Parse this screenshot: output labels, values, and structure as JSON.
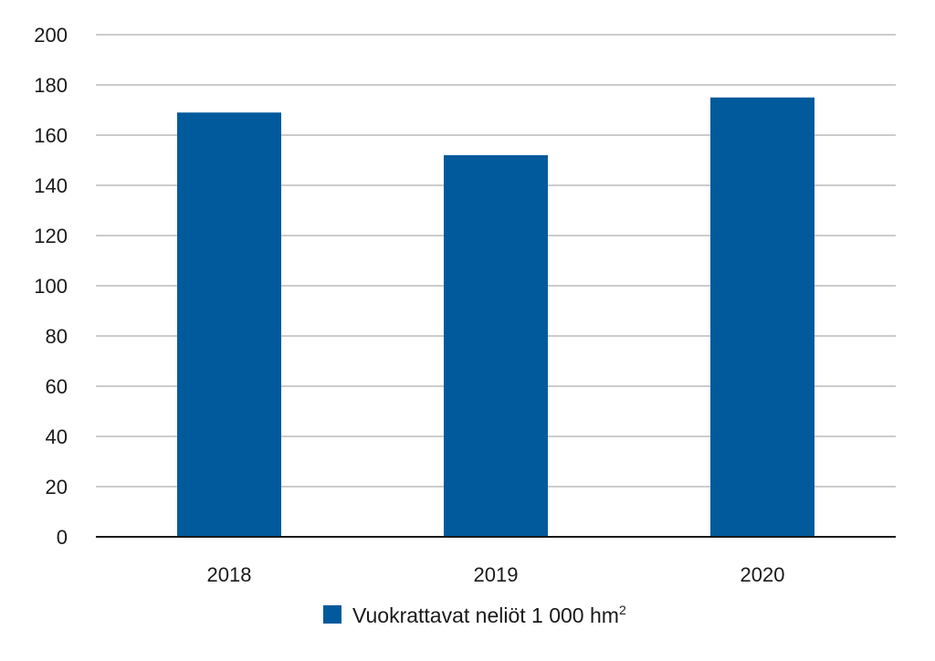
{
  "chart_data": {
    "type": "bar",
    "categories": [
      "2018",
      "2019",
      "2020"
    ],
    "series": [
      {
        "name": "Vuokrattavat neliöt 1 000 hm",
        "name_superscript": "2",
        "values": [
          169,
          152,
          175
        ],
        "color": "#005a9c"
      }
    ],
    "ylim": [
      0,
      200
    ],
    "yticks": [
      0,
      20,
      40,
      60,
      80,
      100,
      120,
      140,
      160,
      180,
      200
    ],
    "grid": true,
    "legend_position": "bottom-center",
    "title": "",
    "xlabel": "",
    "ylabel": ""
  },
  "colors": {
    "grid": "#9a9a9a",
    "axis": "#1a1a1a",
    "text": "#1a1a1a"
  }
}
